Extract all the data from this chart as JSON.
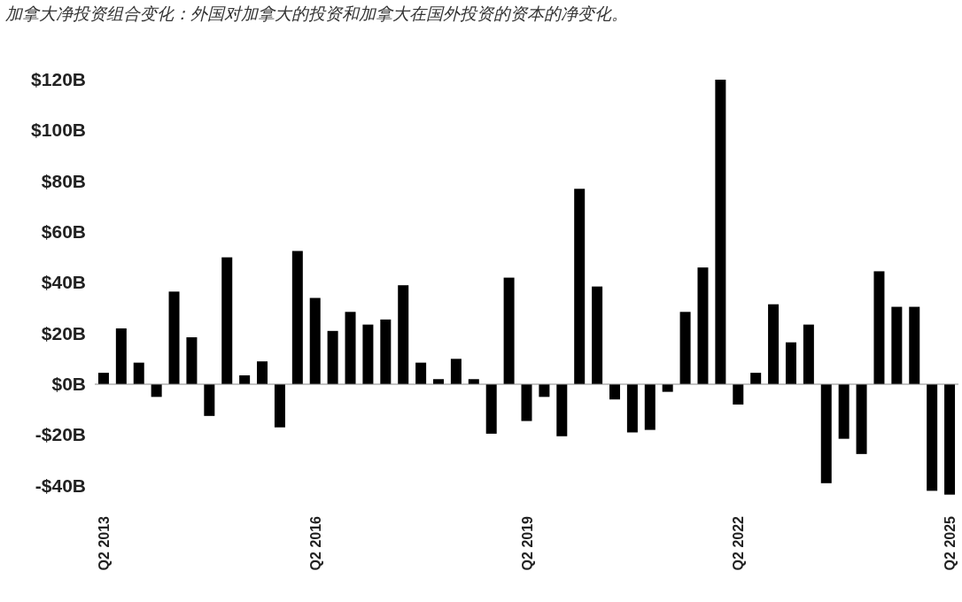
{
  "chart_data": {
    "type": "bar",
    "title": "加拿大净投资组合变化：外国对加拿大的投资和加拿大在国外投资的资本的净变化。",
    "categories": [
      "Q2 2013",
      null,
      null,
      null,
      null,
      null,
      null,
      null,
      null,
      null,
      null,
      null,
      "Q2 2016",
      null,
      null,
      null,
      null,
      null,
      null,
      null,
      null,
      null,
      null,
      null,
      "Q2 2019",
      null,
      null,
      null,
      null,
      null,
      null,
      null,
      null,
      null,
      null,
      null,
      "Q2 2022",
      null,
      null,
      null,
      null,
      null,
      null,
      null,
      null,
      null,
      null,
      null,
      "Q2 2025"
    ],
    "values": [
      4.5,
      22,
      8.5,
      -5,
      36.5,
      18.5,
      -12.5,
      50,
      3.5,
      9,
      -17,
      52.5,
      34,
      21,
      28.5,
      23.5,
      25.5,
      39,
      8.5,
      2,
      10,
      2,
      -19.5,
      42,
      -14.5,
      -5,
      -20.5,
      77,
      38.5,
      -6,
      -19,
      -18,
      -3,
      28.5,
      46,
      120,
      -8,
      4.5,
      31.5,
      16.5,
      23.5,
      -39,
      -21.5,
      -27.5,
      44.5,
      30.5,
      30.5,
      -42,
      -43.5
    ],
    "color": "#000000",
    "ylim": [
      -45,
      120
    ],
    "yticks": [
      {
        "value": -40,
        "label": "-$40B"
      },
      {
        "value": -20,
        "label": "-$20B"
      },
      {
        "value": 0,
        "label": "$0B"
      },
      {
        "value": 20,
        "label": "$20B"
      },
      {
        "value": 40,
        "label": "$40B"
      },
      {
        "value": 60,
        "label": "$60B"
      },
      {
        "value": 80,
        "label": "$80B"
      },
      {
        "value": 100,
        "label": "$100B"
      },
      {
        "value": 120,
        "label": "$120B"
      }
    ]
  }
}
